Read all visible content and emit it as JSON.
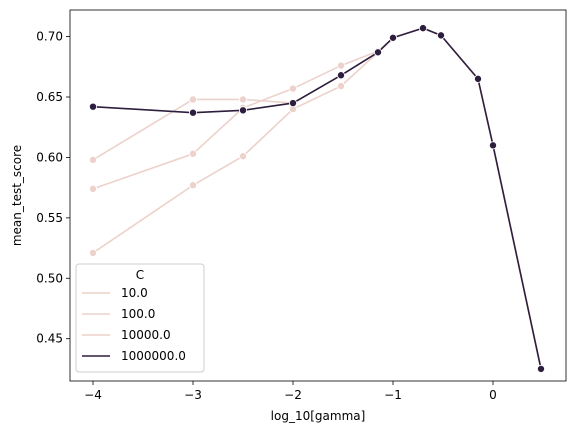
{
  "chart_data": {
    "type": "line",
    "title": "",
    "xlabel": "log_10[gamma]",
    "ylabel": "mean_test_score",
    "xlim": [
      -4.23,
      0.73
    ],
    "ylim": [
      0.415,
      0.722
    ],
    "xticks": [
      -4,
      -3,
      -2,
      -1,
      0
    ],
    "xtick_labels": [
      "−4",
      "−3",
      "−2",
      "−1",
      "0"
    ],
    "yticks": [
      0.45,
      0.5,
      0.55,
      0.6,
      0.65,
      0.7
    ],
    "ytick_labels": [
      "0.45",
      "0.50",
      "0.55",
      "0.60",
      "0.65",
      "0.70"
    ],
    "grid": false,
    "legend": {
      "title": "C",
      "placement": "lower-left",
      "entries": [
        "10.0",
        "100.0",
        "10000.0",
        "1000000.0"
      ]
    },
    "series": [
      {
        "name": "10.0",
        "color": "#edd1cb",
        "x": [
          -4,
          -3,
          -2.5,
          -2,
          -1.52,
          -1.15,
          -1.0,
          -0.7,
          -0.52,
          -0.15,
          0.0,
          0.48
        ],
        "y": [
          0.521,
          0.577,
          0.601,
          0.64,
          0.659,
          0.687,
          0.699,
          0.707,
          0.701,
          0.665,
          0.61,
          0.425
        ]
      },
      {
        "name": "100.0",
        "color": "#edd1cb",
        "x": [
          -4,
          -3,
          -2.5,
          -2,
          -1.52,
          -1.15,
          -1.0,
          -0.7,
          -0.52,
          -0.15,
          0.0,
          0.48
        ],
        "y": [
          0.574,
          0.603,
          0.641,
          0.657,
          0.676,
          0.688,
          0.699,
          0.707,
          0.701,
          0.665,
          0.61,
          0.425
        ]
      },
      {
        "name": "10000.0",
        "color": "#edd1cb",
        "x": [
          -4,
          -3,
          -2.5,
          -2,
          -1.52,
          -1.15,
          -1.0,
          -0.7,
          -0.52,
          -0.15,
          0.0,
          0.48
        ],
        "y": [
          0.598,
          0.648,
          0.648,
          0.645,
          0.668,
          0.687,
          0.699,
          0.707,
          0.701,
          0.665,
          0.61,
          0.425
        ]
      },
      {
        "name": "1000000.0",
        "color": "#2d1e3e",
        "x": [
          -4,
          -3,
          -2.5,
          -2,
          -1.52,
          -1.15,
          -1.0,
          -0.7,
          -0.52,
          -0.15,
          0.0,
          0.48
        ],
        "y": [
          0.642,
          0.637,
          0.639,
          0.645,
          0.668,
          0.687,
          0.699,
          0.707,
          0.701,
          0.665,
          0.61,
          0.425
        ]
      }
    ]
  }
}
